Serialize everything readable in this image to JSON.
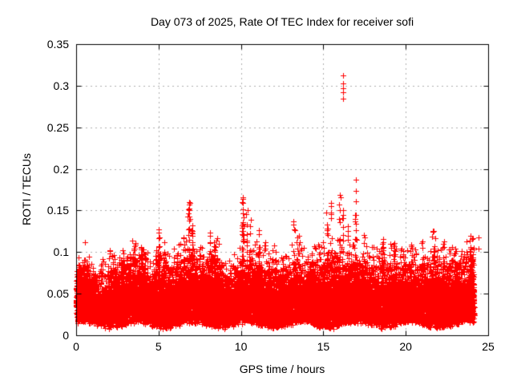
{
  "window": {
    "background": "#ffffff"
  },
  "chart_data": {
    "type": "scatter",
    "title": "Day 073 of 2025, Rate Of TEC Index for receiver sofi",
    "xlabel": "GPS time / hours",
    "ylabel": "ROTI / TECUs",
    "xlim": [
      0,
      25
    ],
    "ylim": [
      0,
      0.35
    ],
    "xtick_values": [
      0,
      5,
      10,
      15,
      20,
      25
    ],
    "xtick_labels": [
      "0",
      "5",
      "10",
      "15",
      "20",
      "25"
    ],
    "ytick_values": [
      0,
      0.05,
      0.1,
      0.15,
      0.2,
      0.25,
      0.3,
      0.35
    ],
    "ytick_labels": [
      "0",
      "0.05",
      "0.1",
      "0.15",
      "0.2",
      "0.25",
      "0.3",
      "0.35"
    ],
    "grid": true,
    "legend": "none",
    "marker": "plus",
    "colors": {
      "points": "#ff0000",
      "grid": "#b0b0b0",
      "axis": "#000000",
      "text": "#000000",
      "background": "#ffffff"
    },
    "x_data_range": [
      0,
      24.15
    ],
    "band": {
      "seed": 20250373,
      "n_points": 16000,
      "n_fringe": 800,
      "epoch_per_hour": 120,
      "top_profile_step": 0.5,
      "top_profile": [
        0.072,
        0.078,
        0.068,
        0.062,
        0.072,
        0.075,
        0.08,
        0.085,
        0.088,
        0.068,
        0.082,
        0.075,
        0.07,
        0.085,
        0.095,
        0.08,
        0.085,
        0.088,
        0.066,
        0.062,
        0.085,
        0.085,
        0.08,
        0.07,
        0.075,
        0.07,
        0.075,
        0.08,
        0.072,
        0.075,
        0.08,
        0.085,
        0.085,
        0.08,
        0.085,
        0.08,
        0.076,
        0.08,
        0.076,
        0.08,
        0.076,
        0.08,
        0.078,
        0.085,
        0.08,
        0.076,
        0.08,
        0.078,
        0.088
      ],
      "bottom_base": 0.01,
      "bottom_amp": 0.007,
      "core_center": 0.42,
      "core_spread": 0.27
    },
    "spikes": [
      [
        0.15,
        0.085,
        6
      ],
      [
        0.7,
        0.082,
        5
      ],
      [
        1.5,
        0.084,
        5
      ],
      [
        2.2,
        0.096,
        8
      ],
      [
        2.85,
        0.093,
        8
      ],
      [
        3.55,
        0.111,
        12
      ],
      [
        3.95,
        0.106,
        10
      ],
      [
        4.15,
        0.098,
        6
      ],
      [
        5.05,
        0.127,
        14
      ],
      [
        5.35,
        0.1,
        6
      ],
      [
        6.1,
        0.095,
        6
      ],
      [
        6.55,
        0.118,
        9
      ],
      [
        6.85,
        0.16,
        22
      ],
      [
        7.05,
        0.132,
        12
      ],
      [
        7.5,
        0.106,
        7
      ],
      [
        8.1,
        0.123,
        10
      ],
      [
        8.4,
        0.112,
        8
      ],
      [
        9.3,
        0.09,
        5
      ],
      [
        10.1,
        0.166,
        26
      ],
      [
        10.35,
        0.15,
        10
      ],
      [
        10.55,
        0.139,
        12
      ],
      [
        11.1,
        0.126,
        10
      ],
      [
        11.45,
        0.112,
        7
      ],
      [
        12.1,
        0.1,
        6
      ],
      [
        12.7,
        0.095,
        5
      ],
      [
        13.2,
        0.137,
        7
      ],
      [
        13.5,
        0.12,
        6
      ],
      [
        14.3,
        0.098,
        6
      ],
      [
        15.25,
        0.148,
        12
      ],
      [
        15.45,
        0.155,
        10
      ],
      [
        16.0,
        0.15,
        14
      ],
      [
        16.18,
        0.15,
        10
      ],
      [
        16.5,
        0.131,
        8
      ],
      [
        16.95,
        0.145,
        16
      ],
      [
        17.5,
        0.121,
        8
      ],
      [
        18.05,
        0.106,
        6
      ],
      [
        18.6,
        0.116,
        10
      ],
      [
        19.3,
        0.111,
        8
      ],
      [
        19.85,
        0.101,
        6
      ],
      [
        20.3,
        0.109,
        8
      ],
      [
        21.0,
        0.113,
        8
      ],
      [
        21.7,
        0.125,
        10
      ],
      [
        22.3,
        0.113,
        8
      ],
      [
        23.0,
        0.098,
        8
      ],
      [
        23.65,
        0.1,
        6
      ],
      [
        23.95,
        0.106,
        12
      ]
    ],
    "outliers": [
      [
        16.18,
        0.312
      ],
      [
        16.18,
        0.303
      ],
      [
        16.18,
        0.297
      ],
      [
        16.18,
        0.292
      ],
      [
        16.18,
        0.284
      ],
      [
        16.97,
        0.187
      ],
      [
        16.97,
        0.174
      ],
      [
        16.97,
        0.161
      ],
      [
        16.02,
        0.169
      ],
      [
        16.05,
        0.166
      ],
      [
        15.45,
        0.159
      ],
      [
        15.97,
        0.157
      ],
      [
        24.4,
        0.118
      ],
      [
        24.4,
        0.104
      ]
    ]
  }
}
